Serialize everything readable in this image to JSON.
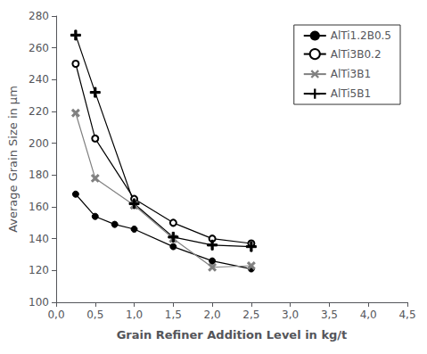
{
  "chart_data": {
    "type": "line",
    "xlabel": "Grain Refiner Addition Level in kg/t",
    "ylabel": "Average Grain Size in µm",
    "series": [
      {
        "name": "AlTi1.2B0.5",
        "x": [
          0.25,
          0.5,
          0.75,
          1.0,
          1.5,
          2.0,
          2.5
        ],
        "values": [
          168,
          154,
          149,
          146,
          135,
          126,
          121
        ],
        "color": "black",
        "marker": "circle"
      },
      {
        "name": "AlTi3B0.2",
        "x": [
          0.25,
          0.5,
          1.0,
          1.5,
          2.0,
          2.5
        ],
        "values": [
          250,
          203,
          165,
          150,
          140,
          137
        ],
        "color": "black",
        "marker": "circle_open"
      },
      {
        "name": "AlTi3B1",
        "x": [
          0.25,
          0.5,
          1.0,
          1.5,
          2.0,
          2.5
        ],
        "values": [
          219,
          178,
          161,
          140,
          122,
          123
        ],
        "color": "gray",
        "marker": "x"
      },
      {
        "name": "AlTi5B1",
        "x": [
          0.25,
          0.5,
          1.0,
          1.5,
          2.0,
          2.5
        ],
        "values": [
          268,
          232,
          162,
          141,
          136,
          135
        ],
        "color": "black",
        "marker": "plus"
      }
    ],
    "xlim": [
      0.0,
      4.5
    ],
    "xticks": [
      {
        "value": 0.0,
        "label": "0,0"
      },
      {
        "value": 0.5,
        "label": "0,5"
      },
      {
        "value": 1.0,
        "label": "1,0"
      },
      {
        "value": 1.5,
        "label": "1,5"
      },
      {
        "value": 2.0,
        "label": "2,0"
      },
      {
        "value": 2.5,
        "label": "2,5"
      },
      {
        "value": 3.0,
        "label": "3,0"
      },
      {
        "value": 3.5,
        "label": "3,5"
      },
      {
        "value": 4.0,
        "label": "4,0"
      },
      {
        "value": 4.5,
        "label": "4,5"
      }
    ],
    "ylim": [
      100,
      280
    ],
    "yticks": [
      100,
      120,
      140,
      160,
      180,
      200,
      220,
      240,
      260,
      280
    ],
    "grid": false,
    "legend": "upper right"
  }
}
